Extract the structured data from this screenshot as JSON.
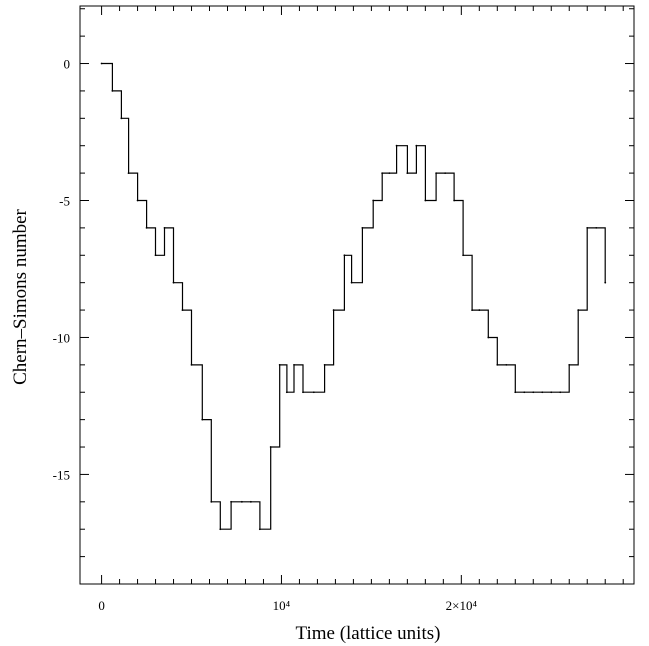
{
  "chart_data": {
    "type": "line",
    "title": "",
    "xlabel": "Time (lattice units)",
    "ylabel": "Chern–Simons number",
    "xlim": [
      -1200,
      29600
    ],
    "ylim": [
      -19.0,
      2.1
    ],
    "grid": false,
    "legend": "none",
    "x_ticks": [
      {
        "value": 0,
        "label": "0"
      },
      {
        "value": 10000,
        "label": "10⁴"
      },
      {
        "value": 20000,
        "label": "2×10⁴"
      }
    ],
    "y_ticks": [
      {
        "value": 0,
        "label": "0"
      },
      {
        "value": -5,
        "label": "-5"
      },
      {
        "value": -10,
        "label": "-10"
      },
      {
        "value": -15,
        "label": "-15"
      }
    ],
    "series": [
      {
        "color": "#000000",
        "x": [
          0,
          600,
          1100,
          1500,
          2000,
          2500,
          3000,
          3500,
          4000,
          4500,
          5000,
          5600,
          6100,
          6600,
          7200,
          7800,
          8300,
          8800,
          9400,
          9900,
          10300,
          10700,
          11200,
          11800,
          12400,
          12900,
          13500,
          13900,
          14500,
          15100,
          15600,
          16000,
          16400,
          17000,
          17500,
          18000,
          18600,
          19100,
          19600,
          20100,
          20600,
          21000,
          21500,
          22000,
          22500,
          23000,
          23500,
          24000,
          24500,
          25000,
          25500,
          26000,
          26500,
          27000,
          27500,
          28000
        ],
        "y": [
          0,
          -1,
          -2,
          -4,
          -5,
          -6,
          -7,
          -6,
          -8,
          -9,
          -11,
          -13,
          -16,
          -17,
          -16,
          -16,
          -16,
          -17,
          -14,
          -11,
          -12,
          -11,
          -12,
          -12,
          -11,
          -9,
          -7,
          -8,
          -6,
          -5,
          -4,
          -4,
          -3,
          -4,
          -3,
          -5,
          -4,
          -4,
          -5,
          -7,
          -9,
          -9,
          -10,
          -11,
          -11,
          -12,
          -12,
          -12,
          -12,
          -12,
          -12,
          -11,
          -9,
          -6,
          -6,
          -8
        ]
      }
    ]
  }
}
